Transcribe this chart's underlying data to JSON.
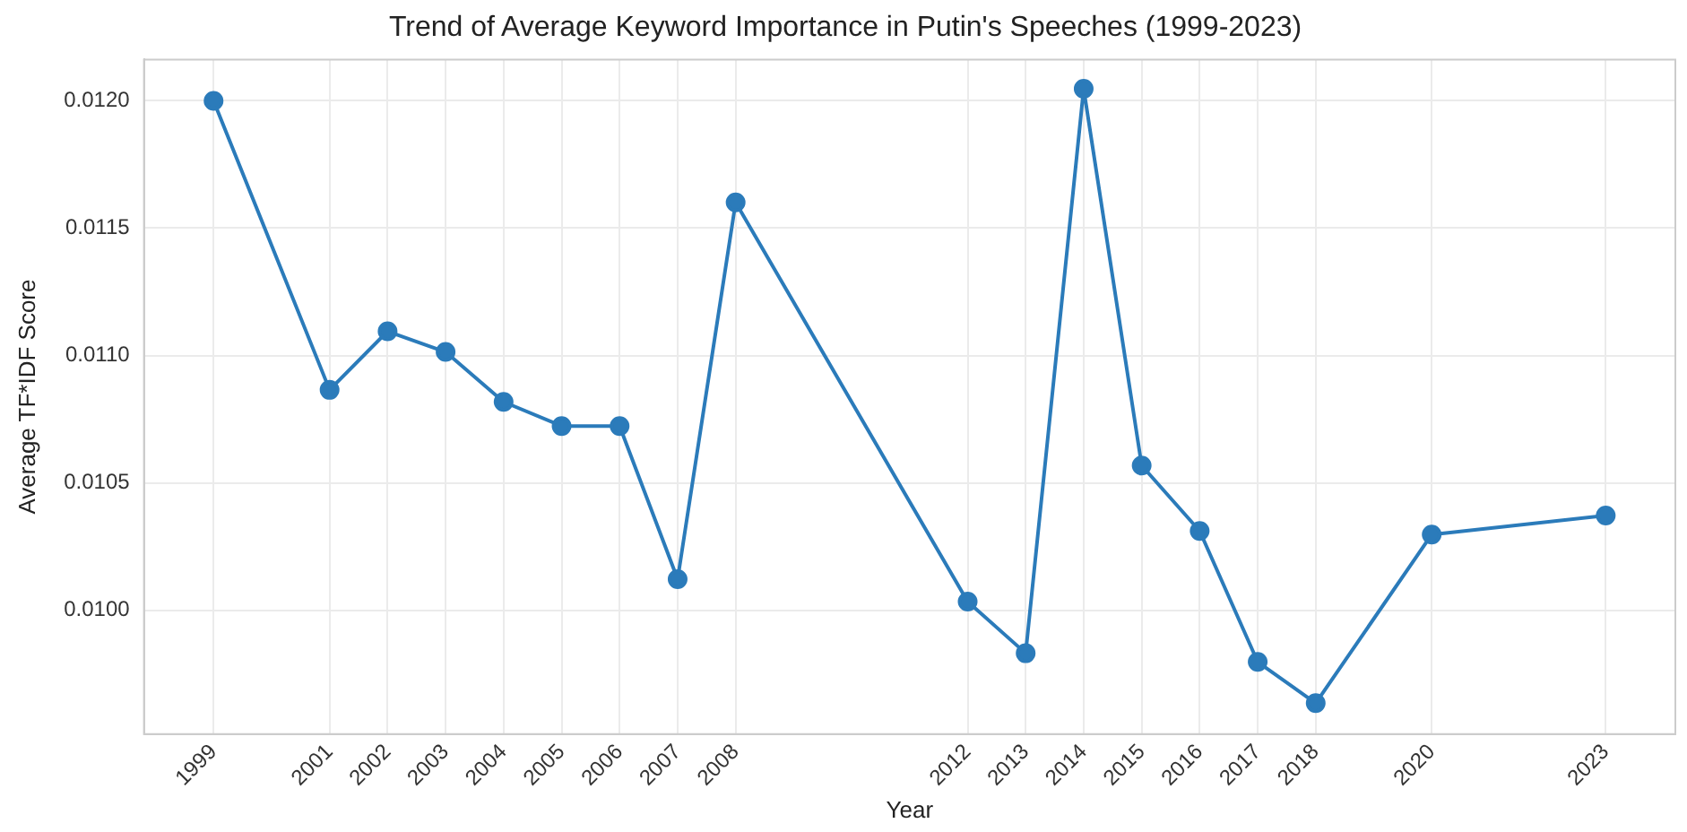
{
  "chart_data": {
    "type": "line",
    "title": "Trend of Average Keyword Importance in Putin's Speeches (1999-2023)",
    "xlabel": "Year",
    "ylabel": "Average TF*IDF Score",
    "x": [
      1999,
      2001,
      2002,
      2003,
      2004,
      2005,
      2006,
      2007,
      2008,
      2012,
      2013,
      2014,
      2015,
      2016,
      2017,
      2018,
      2020,
      2023
    ],
    "series": [
      {
        "color": "#2b7bba",
        "values": [
          0.012,
          0.010865,
          0.011095,
          0.011014,
          0.010818,
          0.010723,
          0.010723,
          0.010122,
          0.011601,
          0.010034,
          0.009831,
          0.012047,
          0.010568,
          0.010311,
          0.009797,
          0.009635,
          0.010297,
          0.010372
        ]
      }
    ],
    "xlim": [
      1997.8,
      2024.2
    ],
    "xticks": [
      1999,
      2001,
      2002,
      2003,
      2004,
      2005,
      2006,
      2007,
      2008,
      2012,
      2013,
      2014,
      2015,
      2016,
      2017,
      2018,
      2020,
      2023
    ],
    "ylim": [
      0.009514,
      0.012162
    ],
    "yticks": [
      {
        "value": 0.01,
        "label": "0.0100"
      },
      {
        "value": 0.0105,
        "label": "0.0105"
      },
      {
        "value": 0.011,
        "label": "0.0110"
      },
      {
        "value": 0.0115,
        "label": "0.0115"
      },
      {
        "value": 0.012,
        "label": "0.0120"
      }
    ],
    "grid": true,
    "legend": false,
    "marker": "circle",
    "line_style": "solid"
  }
}
